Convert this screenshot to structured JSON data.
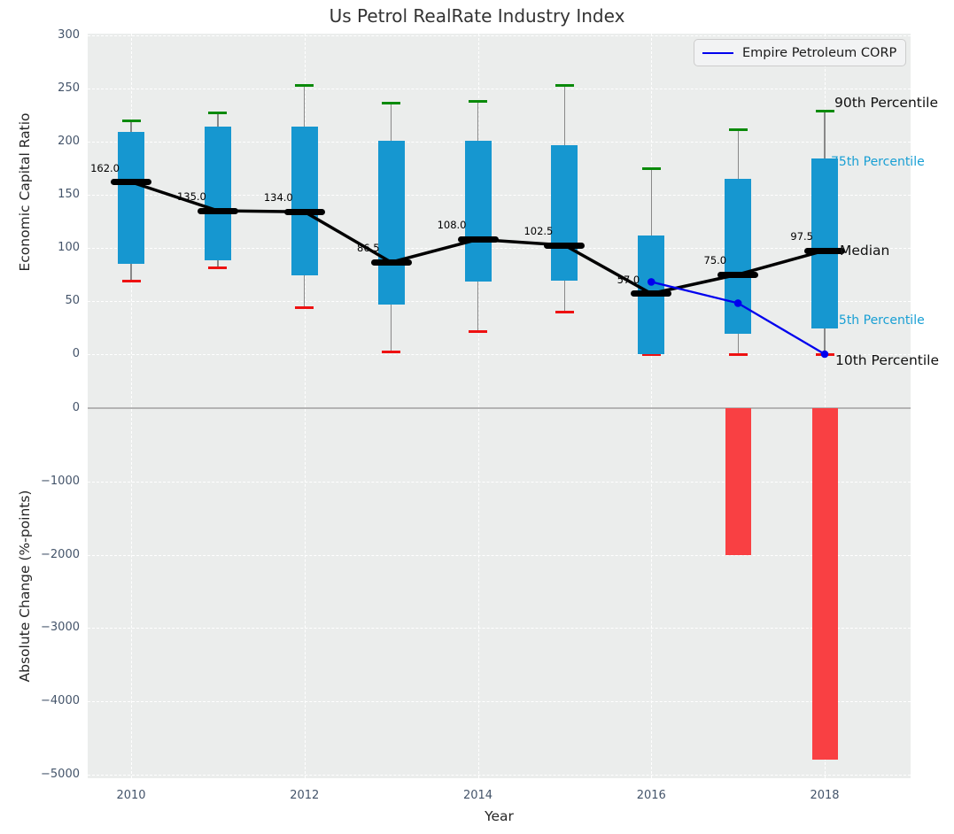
{
  "title": "Us Petrol RealRate Industry Index",
  "legend": {
    "label": "Empire Petroleum CORP"
  },
  "axes": {
    "top": {
      "ylabel": "Economic Capital Ratio",
      "yticks": [
        "300",
        "250",
        "200",
        "150",
        "100",
        "50",
        "0"
      ],
      "ytick_values": [
        300,
        250,
        200,
        150,
        100,
        50,
        0
      ]
    },
    "bottom": {
      "ylabel": "Absolute Change (%-points)",
      "yticks": [
        "0",
        "−1000",
        "−2000",
        "−3000",
        "−4000",
        "−5000"
      ],
      "ytick_values": [
        0,
        -1000,
        -2000,
        -3000,
        -4000,
        -5000
      ]
    },
    "x": {
      "label": "Year",
      "ticks": [
        "2010",
        "2012",
        "2014",
        "2016",
        "2018"
      ],
      "tick_values": [
        2010,
        2012,
        2014,
        2016,
        2018
      ]
    }
  },
  "annotations": {
    "p90": "90th Percentile",
    "p75": "75th Percentile",
    "median": "Median",
    "p25": "25th Percentile",
    "p10": "10th Percentile"
  },
  "colors": {
    "box_fill": "#1697d0",
    "green_cap": "#0a8a0a",
    "red_cap": "#ee1111",
    "bar_red": "#f94043",
    "company_line": "#0000ee",
    "median_trend": "#000000",
    "cyan_label": "#189fd4",
    "plot_bg": "#ebedec",
    "grid": "#ffffff",
    "tick": "#44546a",
    "whisker": "#888888",
    "zero_line": "#b3b3b3"
  },
  "chart_data": [
    {
      "type": "box",
      "title": "Us Petrol RealRate Industry Index",
      "x": [
        2010,
        2011,
        2012,
        2013,
        2014,
        2015,
        2016,
        2017,
        2018
      ],
      "series": [
        {
          "name": "90th Percentile",
          "values": [
            220,
            227,
            253,
            236,
            238,
            253,
            175,
            211,
            229
          ]
        },
        {
          "name": "75th Percentile",
          "values": [
            209,
            214,
            214,
            201,
            201,
            197,
            112,
            165,
            184
          ]
        },
        {
          "name": "Median",
          "values": [
            162,
            135,
            134,
            86.5,
            108,
            102.5,
            57,
            75,
            97.5
          ]
        },
        {
          "name": "25th Percentile",
          "values": [
            85,
            88,
            74,
            47,
            68,
            69,
            0,
            19,
            24
          ]
        },
        {
          "name": "10th Percentile",
          "values": [
            69,
            81,
            44,
            2,
            21,
            40,
            0,
            0,
            0
          ]
        }
      ],
      "median_labels": [
        "162.0",
        "135.0",
        "134.0",
        "86.5",
        "108.0",
        "102.5",
        "57.0",
        "75.0",
        "97.5"
      ],
      "ylabel": "Economic Capital Ratio",
      "ylim": [
        0,
        300
      ],
      "grid": true,
      "legend_position": "upper right"
    },
    {
      "type": "line",
      "name": "Empire Petroleum CORP",
      "x": [
        2016,
        2017,
        2018
      ],
      "y": [
        68,
        48,
        0
      ]
    },
    {
      "type": "bar",
      "x": [
        2017,
        2018
      ],
      "values": [
        -2000,
        -4800
      ],
      "ylabel": "Absolute Change (%-points)",
      "ylim": [
        -5000,
        0
      ]
    }
  ]
}
